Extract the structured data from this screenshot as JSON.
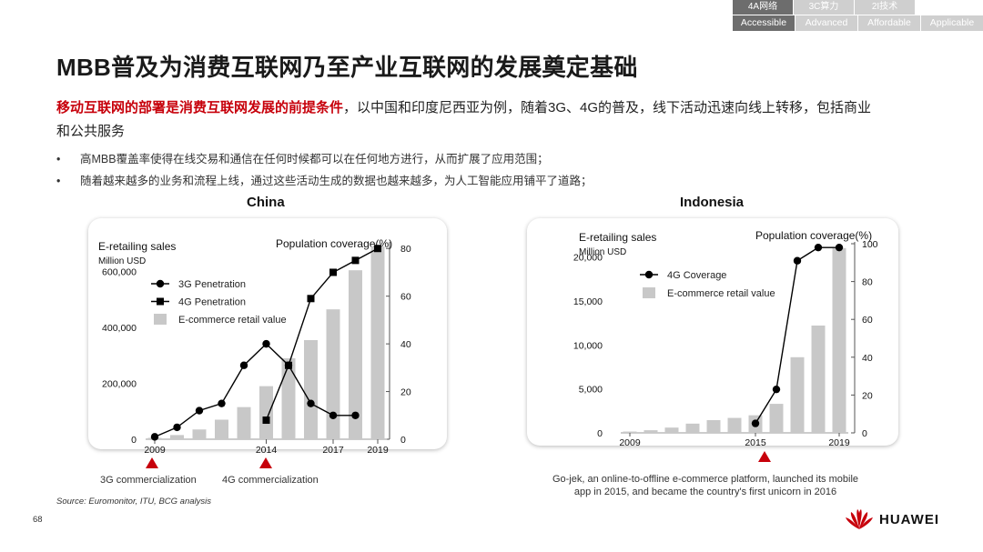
{
  "nav": {
    "top_tabs": [
      {
        "label": "4A网络",
        "active": true
      },
      {
        "label": "3C算力",
        "active": false
      },
      {
        "label": "2I技术",
        "active": false
      }
    ],
    "bottom_tabs": [
      {
        "label": "Accessible",
        "active": true
      },
      {
        "label": "Advanced",
        "active": false
      },
      {
        "label": "Affordable",
        "active": false
      },
      {
        "label": "Applicable",
        "active": false
      }
    ]
  },
  "title": "MBB普及为消费互联网乃至产业互联网的发展奠定基础",
  "lead": {
    "highlight": "移动互联网的部署是消费互联网发展的前提条件",
    "rest": "，以中国和印度尼西亚为例，随着3G、4G的普及，线下活动迅速向线上转移，包括商业和公共服务"
  },
  "bullets": [
    "高MBB覆盖率使得在线交易和通信在任何时候都可以在任何地方进行，从而扩展了应用范围；",
    "随着越来越多的业务和流程上线，通过这些活动生成的数据也越来越多，为人工智能应用铺平了道路；"
  ],
  "colors": {
    "accent": "#c7000b",
    "bar": "#c8c8c8",
    "line": "#000000"
  },
  "chart_data": [
    {
      "type": "bar",
      "title": "China",
      "ylabel": "E-retailing sales",
      "ylabel_unit": "Million USD",
      "y2label": "Population coverage(%)",
      "x": [
        2009,
        2010,
        2011,
        2012,
        2013,
        2014,
        2015,
        2016,
        2017,
        2018,
        2019
      ],
      "xticks": [
        "2009",
        "2014",
        "2017",
        "2019"
      ],
      "ylim": [
        0,
        700000
      ],
      "yticks": [
        0,
        200000,
        400000,
        600000
      ],
      "yticklabels": [
        "0",
        "200,000",
        "400,000",
        "600,000"
      ],
      "y2lim": [
        0,
        82
      ],
      "y2ticks": [
        0,
        20,
        40,
        60,
        80
      ],
      "series": [
        {
          "name": "3G Penetration",
          "kind": "line",
          "marker": "circle",
          "axis": "right",
          "x": [
            2009,
            2010,
            2011,
            2012,
            2013,
            2014,
            2015,
            2016,
            2017,
            2018
          ],
          "values": [
            1,
            5,
            12,
            15,
            31,
            40,
            31,
            15,
            10,
            10
          ]
        },
        {
          "name": "4G Penetration",
          "kind": "line",
          "marker": "square",
          "axis": "right",
          "x": [
            2014,
            2015,
            2016,
            2017,
            2018,
            2019
          ],
          "values": [
            8,
            31,
            59,
            70,
            75,
            80
          ]
        },
        {
          "name": "E-commerce retail value",
          "kind": "bar",
          "axis": "left",
          "x": [
            2009,
            2010,
            2011,
            2012,
            2013,
            2014,
            2015,
            2016,
            2017,
            2018,
            2019
          ],
          "values": [
            5000,
            15000,
            35000,
            70000,
            115000,
            190000,
            290000,
            355000,
            465000,
            605000,
            690000
          ]
        }
      ],
      "annotations": [
        "3G commercialization",
        "4G commercialization"
      ]
    },
    {
      "type": "bar",
      "title": "Indonesia",
      "ylabel": "E-retailing sales",
      "ylabel_unit": "Million USD",
      "y2label": "Population coverage(%)",
      "x": [
        2009,
        2010,
        2011,
        2012,
        2013,
        2014,
        2015,
        2016,
        2017,
        2018,
        2019
      ],
      "xticks": [
        "2009",
        "2015",
        "2019"
      ],
      "ylim": [
        0,
        21500
      ],
      "yticks": [
        0,
        5000,
        10000,
        15000,
        20000
      ],
      "yticklabels": [
        "0",
        "5,000",
        "10,000",
        "15,000",
        "20,000"
      ],
      "y2lim": [
        0,
        100
      ],
      "y2ticks": [
        0,
        20,
        40,
        60,
        80,
        100
      ],
      "series": [
        {
          "name": "4G Coverage",
          "kind": "line",
          "marker": "circle",
          "axis": "right",
          "x": [
            2015,
            2016,
            2017,
            2018,
            2019
          ],
          "values": [
            5,
            23,
            91,
            98,
            98
          ]
        },
        {
          "name": "E-commerce retail value",
          "kind": "bar",
          "axis": "left",
          "x": [
            2009,
            2010,
            2011,
            2012,
            2013,
            2014,
            2015,
            2016,
            2017,
            2018,
            2019
          ],
          "values": [
            150,
            300,
            600,
            1050,
            1450,
            1700,
            2000,
            3300,
            8600,
            12200,
            21000
          ]
        }
      ],
      "annotations": [
        "Go-jek, an online-to-offline e-commerce platform, launched its mobile",
        "app in 2015, and became the country's first unicorn in 2016"
      ]
    }
  ],
  "footer": {
    "source": "Source: Euromonitor, ITU, BCG analysis",
    "page_number": "68",
    "logo_text": "HUAWEI"
  }
}
